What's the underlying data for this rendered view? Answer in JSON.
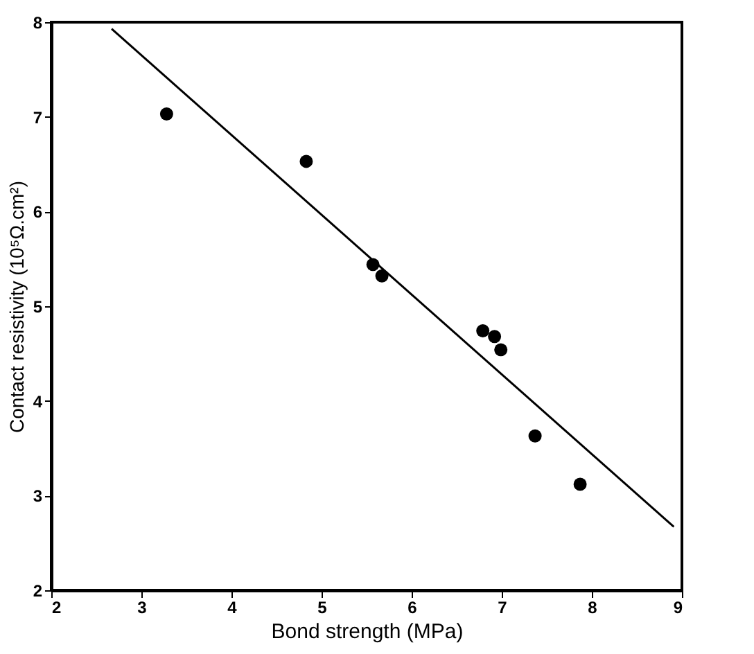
{
  "chart_data": {
    "type": "scatter",
    "xlabel": "Bond strength (MPa)",
    "ylabel": "Contact resistivity (10⁵Ω.cm²)",
    "series": [
      {
        "type": "scatter",
        "color": "#000000",
        "marker": "circle",
        "x": [
          3.28,
          4.83,
          5.57,
          5.67,
          6.79,
          6.92,
          6.99,
          7.37,
          7.87
        ],
        "values": [
          7.03,
          6.53,
          5.44,
          5.32,
          4.74,
          4.68,
          4.54,
          3.63,
          3.12
        ]
      },
      {
        "type": "line",
        "color": "#000000",
        "marker": "none",
        "line_style": "solid",
        "x": [
          2.67,
          8.91
        ],
        "values": [
          7.93,
          2.67
        ]
      }
    ],
    "xlim": [
      2,
      9
    ],
    "xticks": [
      2,
      3,
      4,
      5,
      6,
      7,
      8,
      9
    ],
    "ylim": [
      2,
      8
    ],
    "yticks": [
      2,
      3,
      4,
      5,
      6,
      7,
      8
    ],
    "grid": false
  }
}
